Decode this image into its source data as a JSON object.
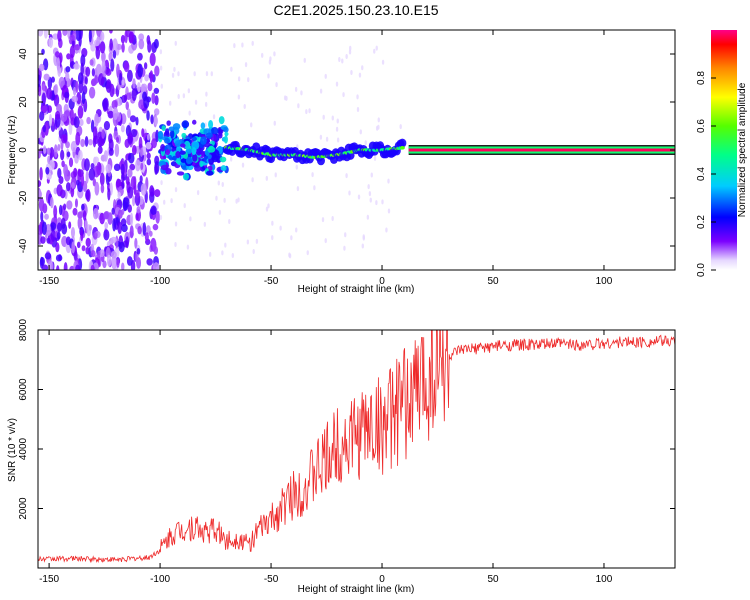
{
  "chart_data": [
    {
      "type": "heatmap",
      "title": "C2E1.2025.150.23.10.E15",
      "xlabel": "Height of straight line (km)",
      "ylabel": "Frequency (Hz)",
      "xlim": [
        -155,
        132
      ],
      "ylim": [
        -50,
        50
      ],
      "xticks": [
        -150,
        -100,
        -50,
        0,
        50,
        100
      ],
      "yticks": [
        -40,
        -20,
        0,
        20,
        40
      ],
      "colorbar": {
        "label": "Normalized spectral amplitude",
        "range": [
          0,
          1
        ],
        "ticks": [
          "0.0",
          "0.2",
          "0.4",
          "0.6",
          "0.8"
        ]
      },
      "features": [
        {
          "kind": "noise",
          "x_range": [
            -155,
            -101
          ],
          "y_range": [
            -50,
            50
          ],
          "level": 0.08
        },
        {
          "kind": "cluster",
          "x_range": [
            -100,
            -70
          ],
          "y_range": [
            -10,
            10
          ],
          "level": 0.25
        },
        {
          "kind": "trace",
          "points": [
            [
              -70,
              1
            ],
            [
              -60,
              0
            ],
            [
              -50,
              -2
            ],
            [
              -40,
              -2
            ],
            [
              -30,
              -3
            ],
            [
              -20,
              -2
            ],
            [
              -10,
              0
            ],
            [
              0,
              0
            ],
            [
              10,
              1
            ]
          ],
          "level": 0.55
        },
        {
          "kind": "line",
          "x_range": [
            12,
            132
          ],
          "y": 0,
          "level": 0.98
        }
      ]
    },
    {
      "type": "line",
      "title": "",
      "xlabel": "Height of straight line (km)",
      "ylabel": "SNR (10 * v/v)",
      "xlim": [
        -155,
        132
      ],
      "ylim": [
        0,
        8000
      ],
      "xticks": [
        -150,
        -100,
        -50,
        0,
        50,
        100
      ],
      "yticks": [
        2000,
        4000,
        6000,
        8000
      ],
      "color": "#ee2a2a",
      "series": [
        {
          "x": [
            -155,
            -140,
            -120,
            -105,
            -100,
            -95,
            -90,
            -85,
            -80,
            -75,
            -70,
            -65,
            -60,
            -55,
            -50,
            -45,
            -40,
            -35,
            -30,
            -25,
            -20,
            -15,
            -10,
            -5,
            0,
            5,
            10,
            15,
            20,
            25,
            30,
            35,
            40,
            50,
            60,
            70,
            80,
            90,
            100,
            110,
            120,
            132
          ],
          "y": [
            300,
            320,
            280,
            350,
            600,
            1100,
            1300,
            1400,
            1200,
            1300,
            900,
            1000,
            800,
            1300,
            1600,
            2000,
            2500,
            2700,
            3200,
            3600,
            4200,
            4300,
            4500,
            4800,
            4800,
            5100,
            5500,
            5900,
            6400,
            6800,
            7100,
            7300,
            7350,
            7450,
            7500,
            7500,
            7550,
            7500,
            7550,
            7600,
            7600,
            7650
          ]
        }
      ]
    }
  ]
}
